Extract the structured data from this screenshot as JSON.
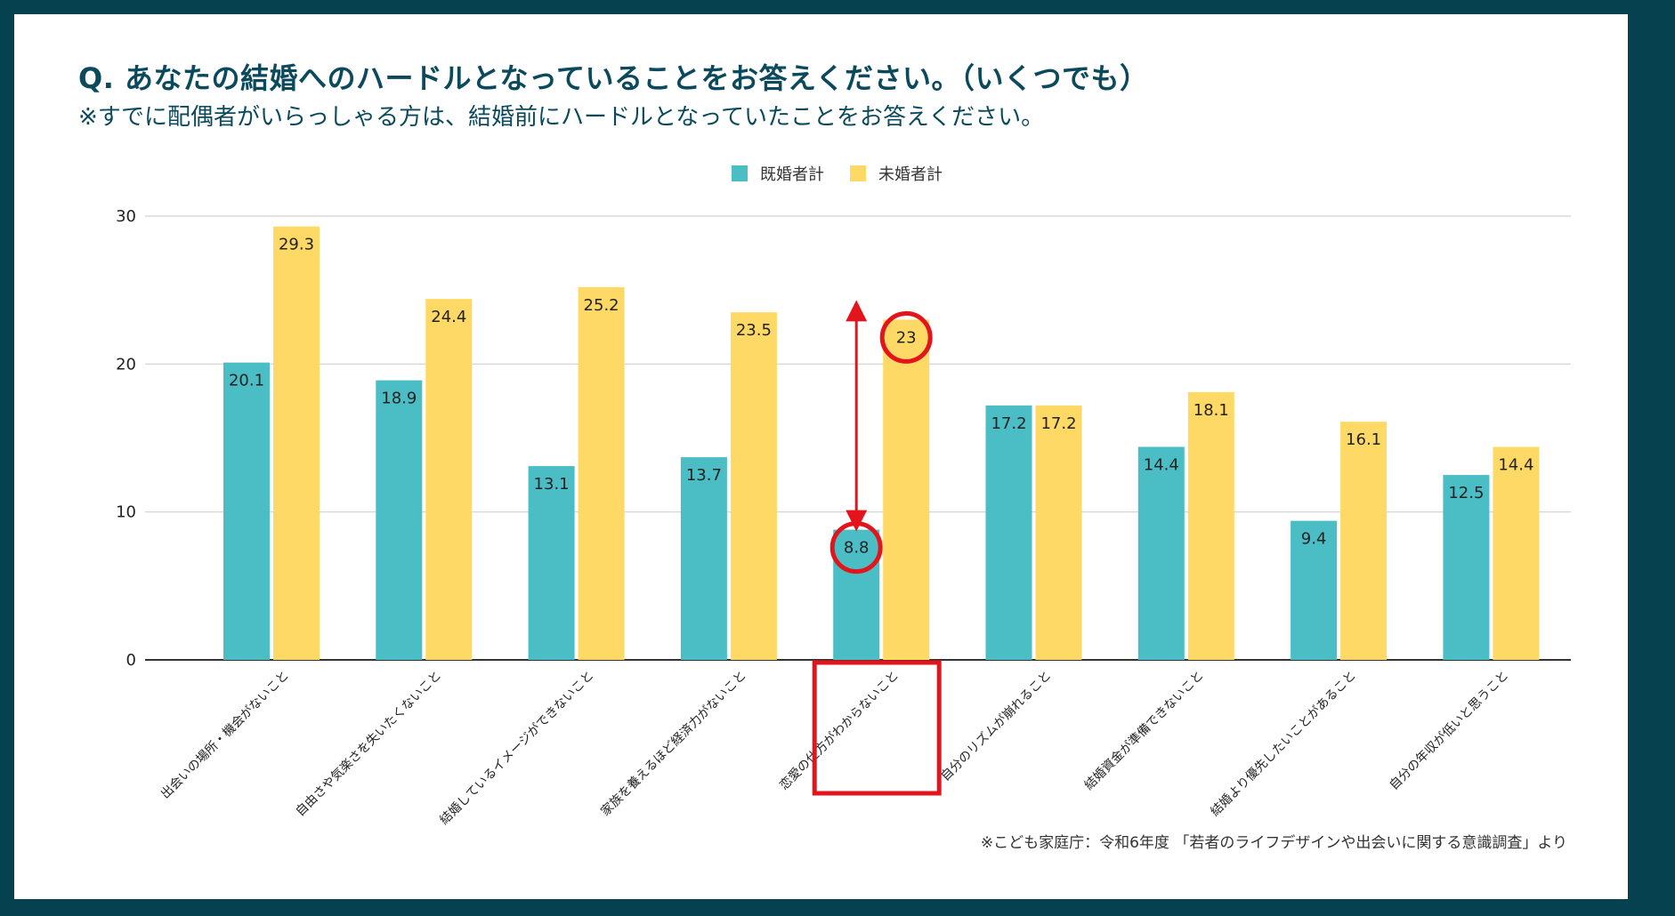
{
  "header": {
    "title": "Q. あなたの結婚へのハードルとなっていることをお答えください。（いくつでも）",
    "subtitle": "※すでに配偶者がいらっしゃる方は、結婚前にハードルとなっていたことをお答えください。"
  },
  "footnote": "※こども家庭庁：令和6年度 「若者のライフデザインや出会いに関する意識調査」より",
  "chart_data": {
    "type": "bar",
    "categories": [
      "出会いの場所・機会がないこと",
      "自由さや気楽さを失いたくないこと",
      "結婚しているイメージができないこと",
      "家族を養えるほど経済力がないこと",
      "恋愛の仕方がわからないこと",
      "自分のリズムが崩れること",
      "結婚資金が準備できないこと",
      "結婚より優先したいことがあること",
      "自分の年収が低いと思うこと"
    ],
    "series": [
      {
        "name": "既婚者計",
        "color": "#4bbdc5",
        "values": [
          20.1,
          18.9,
          13.1,
          13.7,
          8.8,
          17.2,
          14.4,
          9.4,
          12.5
        ]
      },
      {
        "name": "未婚者計",
        "color": "#ffd966",
        "values": [
          29.3,
          24.4,
          25.2,
          23.5,
          23,
          17.2,
          18.1,
          16.1,
          14.4
        ]
      }
    ],
    "yticks": [
      0,
      10,
      20,
      30
    ],
    "ylim": [
      0,
      30
    ],
    "grid": true,
    "legend": "top-center",
    "highlight": {
      "category_index": 4,
      "circled_values": [
        8.8,
        23
      ],
      "color": "#e3141b",
      "arrow": "double-headed between 既婚者計 and 未婚者計"
    }
  }
}
